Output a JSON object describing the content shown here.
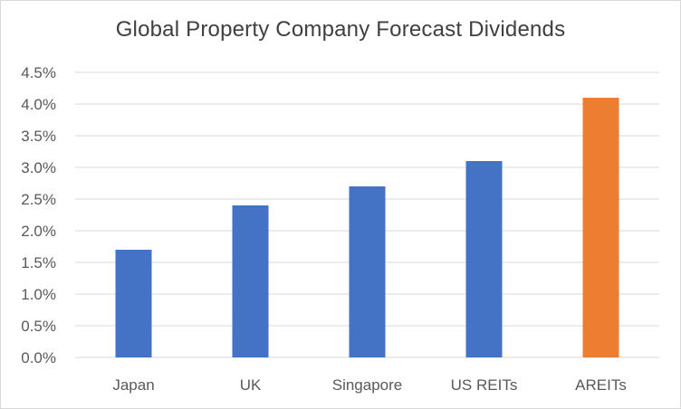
{
  "chart_data": {
    "type": "bar",
    "title": "Global Property Company Forecast Dividends",
    "xlabel": "",
    "ylabel": "",
    "categories": [
      "Japan",
      "UK",
      "Singapore",
      "US REITs",
      "AREITs"
    ],
    "values": [
      1.7,
      2.4,
      2.7,
      3.1,
      4.1
    ],
    "bar_colors": [
      "#4472C4",
      "#4472C4",
      "#4472C4",
      "#4472C4",
      "#ED7D31"
    ],
    "ylim": [
      0,
      4.5
    ],
    "yticks": [
      "0.0%",
      "0.5%",
      "1.0%",
      "1.5%",
      "2.0%",
      "2.5%",
      "3.0%",
      "3.5%",
      "4.0%",
      "4.5%"
    ],
    "grid": true,
    "gridline_color": "#d9d9d9",
    "legend": "none"
  }
}
